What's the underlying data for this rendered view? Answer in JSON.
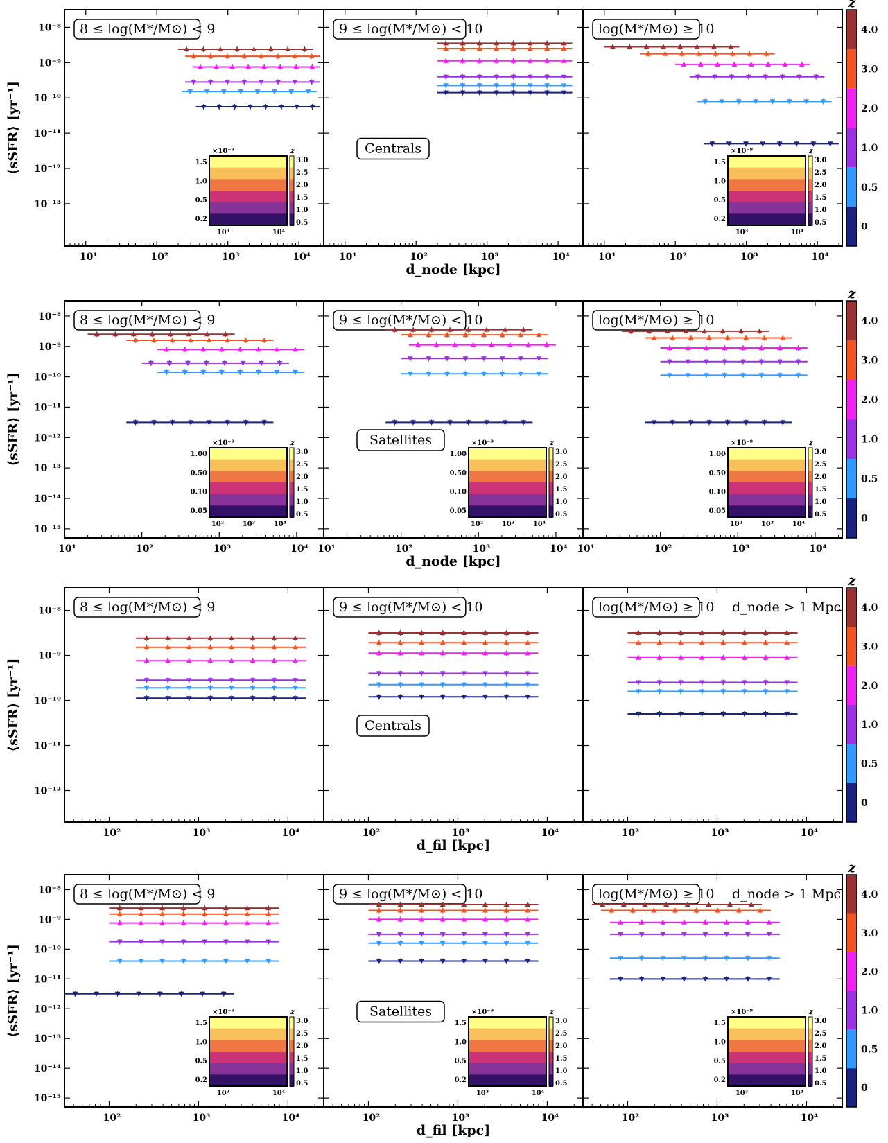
{
  "rows": [
    {
      "ylabel": "⟨sSFR⟩ [yr⁻¹]",
      "xlabel": "d_node [kpc]",
      "yticks": [
        -13,
        -12,
        -11,
        -10,
        -9,
        -8
      ],
      "ymin": -14.2,
      "ymax": -7.5,
      "xmin": 0.7,
      "xmax": 4.35,
      "cb_label": "z",
      "annotation": "Centrals",
      "inset_x_labels": [
        "10³",
        "10⁴"
      ],
      "inset_y_labels": [
        "1.5",
        "1.0",
        "0.5",
        "0.2"
      ],
      "inset_cb_labels": [
        "3.0",
        "2.5",
        "2.0",
        "1.5",
        "1.0",
        "0.5"
      ],
      "inset_exp": "×10⁻⁹"
    },
    {
      "ylabel": "⟨sSFR⟩ [yr⁻¹]",
      "xlabel": "d_node [kpc]",
      "yticks": [
        -15,
        -14,
        -13,
        -12,
        -11,
        -10,
        -9,
        -8
      ],
      "ymin": -15.3,
      "ymax": -7.5,
      "xmin": 1.0,
      "xmax": 4.35,
      "cb_label": "z",
      "annotation": "Satellites",
      "inset_x_labels": [
        "10²",
        "10³",
        "10⁴"
      ],
      "inset_y_labels": [
        "1.00",
        "0.50",
        "0.10",
        "0.05"
      ],
      "inset_cb_labels": [
        "3.0",
        "2.5",
        "2.0",
        "1.5",
        "1.0",
        "0.5"
      ],
      "inset_exp": "×10⁻⁹"
    },
    {
      "ylabel": "⟨sSFR⟩ [yr⁻¹]",
      "xlabel": "d_fil [kpc]",
      "yticks": [
        -12,
        -11,
        -10,
        -9,
        -8
      ],
      "ymin": -12.7,
      "ymax": -7.5,
      "xmin": 1.5,
      "xmax": 4.4,
      "cb_label": "z",
      "annotation": "Centrals",
      "extra_label": "d_node > 1 Mpc"
    },
    {
      "ylabel": "⟨sSFR⟩ [yr⁻¹]",
      "xlabel": "d_fil [kpc]",
      "yticks": [
        -15,
        -14,
        -13,
        -12,
        -11,
        -10,
        -9,
        -8
      ],
      "ymin": -15.3,
      "ymax": -7.5,
      "xmin": 1.5,
      "xmax": 4.4,
      "cb_label": "z",
      "annotation": "Satellites",
      "extra_label": "d_node > 1 Mpc",
      "inset_x_labels": [
        "10³",
        "10⁴"
      ],
      "inset_y_labels": [
        "1.5",
        "1.0",
        "0.5",
        "0.2"
      ],
      "inset_cb_labels": [
        "3.0",
        "2.5",
        "2.0",
        "1.5",
        "1.0",
        "0.5"
      ],
      "inset_exp": "×10⁻⁹"
    }
  ],
  "panel_titles": [
    "8 ≤ log(M*/M⊙) < 9",
    "9 ≤ log(M*/M⊙) < 10",
    "log(M*/M⊙) ≥ 10"
  ],
  "colorbar": {
    "labels": [
      "4.0",
      "3.0",
      "2.0",
      "1.0",
      "0.5",
      "0"
    ],
    "colors": [
      "#993333",
      "#ee5522",
      "#ee22ee",
      "#9933dd",
      "#3399ff",
      "#1a237e"
    ]
  },
  "chart_data": {
    "type": "line",
    "series_z": [
      "4.0",
      "3.0",
      "2.0",
      "1.0",
      "0.5",
      "0"
    ],
    "series_colors": [
      "#993333",
      "#ee5522",
      "#ee22ee",
      "#9933dd",
      "#3399ff",
      "#1a237e"
    ],
    "panels": [
      {
        "row": 0,
        "col": 0,
        "y": [
          -8.62,
          -8.82,
          -9.12,
          -9.55,
          -9.82,
          -10.25
        ],
        "x": [
          3.3,
          3.4,
          3.5,
          3.4,
          3.35,
          3.55
        ]
      },
      {
        "row": 0,
        "col": 1,
        "y": [
          -8.45,
          -8.6,
          -8.95,
          -9.4,
          -9.65,
          -9.85
        ],
        "x": [
          3.3,
          3.3,
          3.3,
          3.3,
          3.3,
          3.3
        ]
      },
      {
        "row": 0,
        "col": 2,
        "y": [
          -8.55,
          -8.75,
          -9.05,
          -9.4,
          -10.1,
          -11.3
        ],
        "x": [
          2.0,
          2.5,
          3.0,
          3.2,
          3.3,
          3.4
        ]
      },
      {
        "row": 1,
        "col": 0,
        "y": [
          -8.6,
          -8.8,
          -9.1,
          -9.55,
          -9.85,
          -11.5
        ],
        "x": [
          2.3,
          2.8,
          3.2,
          3.0,
          3.2,
          2.8
        ]
      },
      {
        "row": 1,
        "col": 1,
        "y": [
          -8.45,
          -8.62,
          -8.95,
          -9.4,
          -9.9,
          -11.5
        ],
        "x": [
          2.8,
          3.0,
          3.1,
          3.0,
          3.0,
          2.8
        ]
      },
      {
        "row": 1,
        "col": 2,
        "y": [
          -8.5,
          -8.72,
          -9.05,
          -9.5,
          -9.95,
          -11.5
        ],
        "x": [
          2.5,
          2.8,
          3.0,
          3.0,
          3.0,
          2.8
        ]
      },
      {
        "row": 2,
        "col": 0,
        "y": [
          -8.62,
          -8.82,
          -9.12,
          -9.55,
          -9.72,
          -9.95
        ],
        "x": [
          3.3,
          3.3,
          3.3,
          3.3,
          3.3,
          3.3
        ]
      },
      {
        "row": 2,
        "col": 1,
        "y": [
          -8.5,
          -8.72,
          -8.95,
          -9.4,
          -9.65,
          -9.92
        ],
        "x": [
          3.0,
          3.0,
          3.0,
          3.0,
          3.0,
          3.0
        ]
      },
      {
        "row": 2,
        "col": 2,
        "y": [
          -8.5,
          -8.72,
          -9.05,
          -9.6,
          -9.8,
          -10.3
        ],
        "x": [
          3.0,
          3.0,
          3.0,
          3.0,
          3.0,
          3.0
        ]
      },
      {
        "row": 3,
        "col": 0,
        "y": [
          -8.62,
          -8.82,
          -9.12,
          -9.75,
          -10.4,
          -11.5
        ],
        "x": [
          3.0,
          3.0,
          3.0,
          3.0,
          3.0,
          2.5
        ]
      },
      {
        "row": 3,
        "col": 1,
        "y": [
          -8.5,
          -8.7,
          -9.0,
          -9.5,
          -9.8,
          -10.4
        ],
        "x": [
          3.0,
          3.0,
          3.0,
          3.0,
          3.0,
          3.0
        ]
      },
      {
        "row": 3,
        "col": 2,
        "y": [
          -8.5,
          -8.7,
          -9.1,
          -9.5,
          -10.3,
          -11.0
        ],
        "x": [
          2.6,
          2.7,
          2.8,
          2.8,
          2.8,
          2.8
        ]
      }
    ]
  }
}
